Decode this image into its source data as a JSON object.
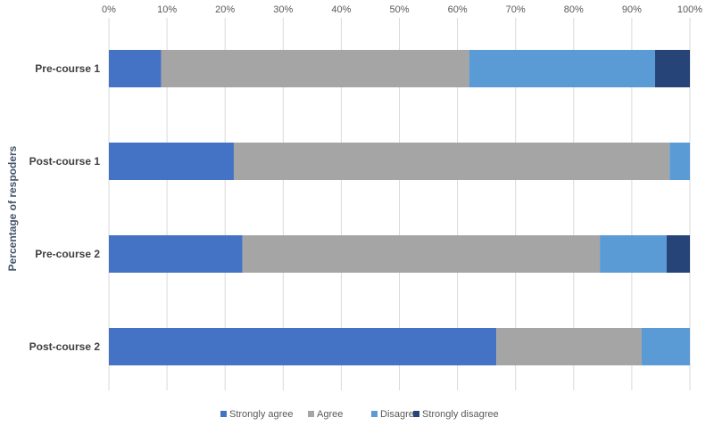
{
  "chart_data": {
    "type": "bar",
    "orientation": "horizontal",
    "stacked": "percent",
    "title": "",
    "ylabel": "Percentage of respoders",
    "xlabel": "",
    "xlim": [
      0,
      100
    ],
    "x_ticks": [
      "0%",
      "10%",
      "20%",
      "30%",
      "40%",
      "50%",
      "60%",
      "70%",
      "80%",
      "90%",
      "100%"
    ],
    "x_axis_position": "top",
    "grid": true,
    "legend_position": "bottom",
    "categories": [
      "Pre-course 1",
      "Post-course 1",
      "Pre-course 2",
      "Post-course 2"
    ],
    "series": [
      {
        "name": "Strongly agree",
        "color": "#4472c4",
        "values": [
          9,
          21.5,
          23,
          66.7
        ]
      },
      {
        "name": "Agree",
        "color": "#a5a5a5",
        "values": [
          53,
          75,
          61.5,
          25
        ]
      },
      {
        "name": "Disagree",
        "color": "#5b9bd5",
        "values": [
          32,
          3.5,
          11.5,
          8.3
        ]
      },
      {
        "name": "Strongly disagree",
        "color": "#264478",
        "values": [
          6,
          0,
          4,
          0
        ]
      }
    ]
  }
}
